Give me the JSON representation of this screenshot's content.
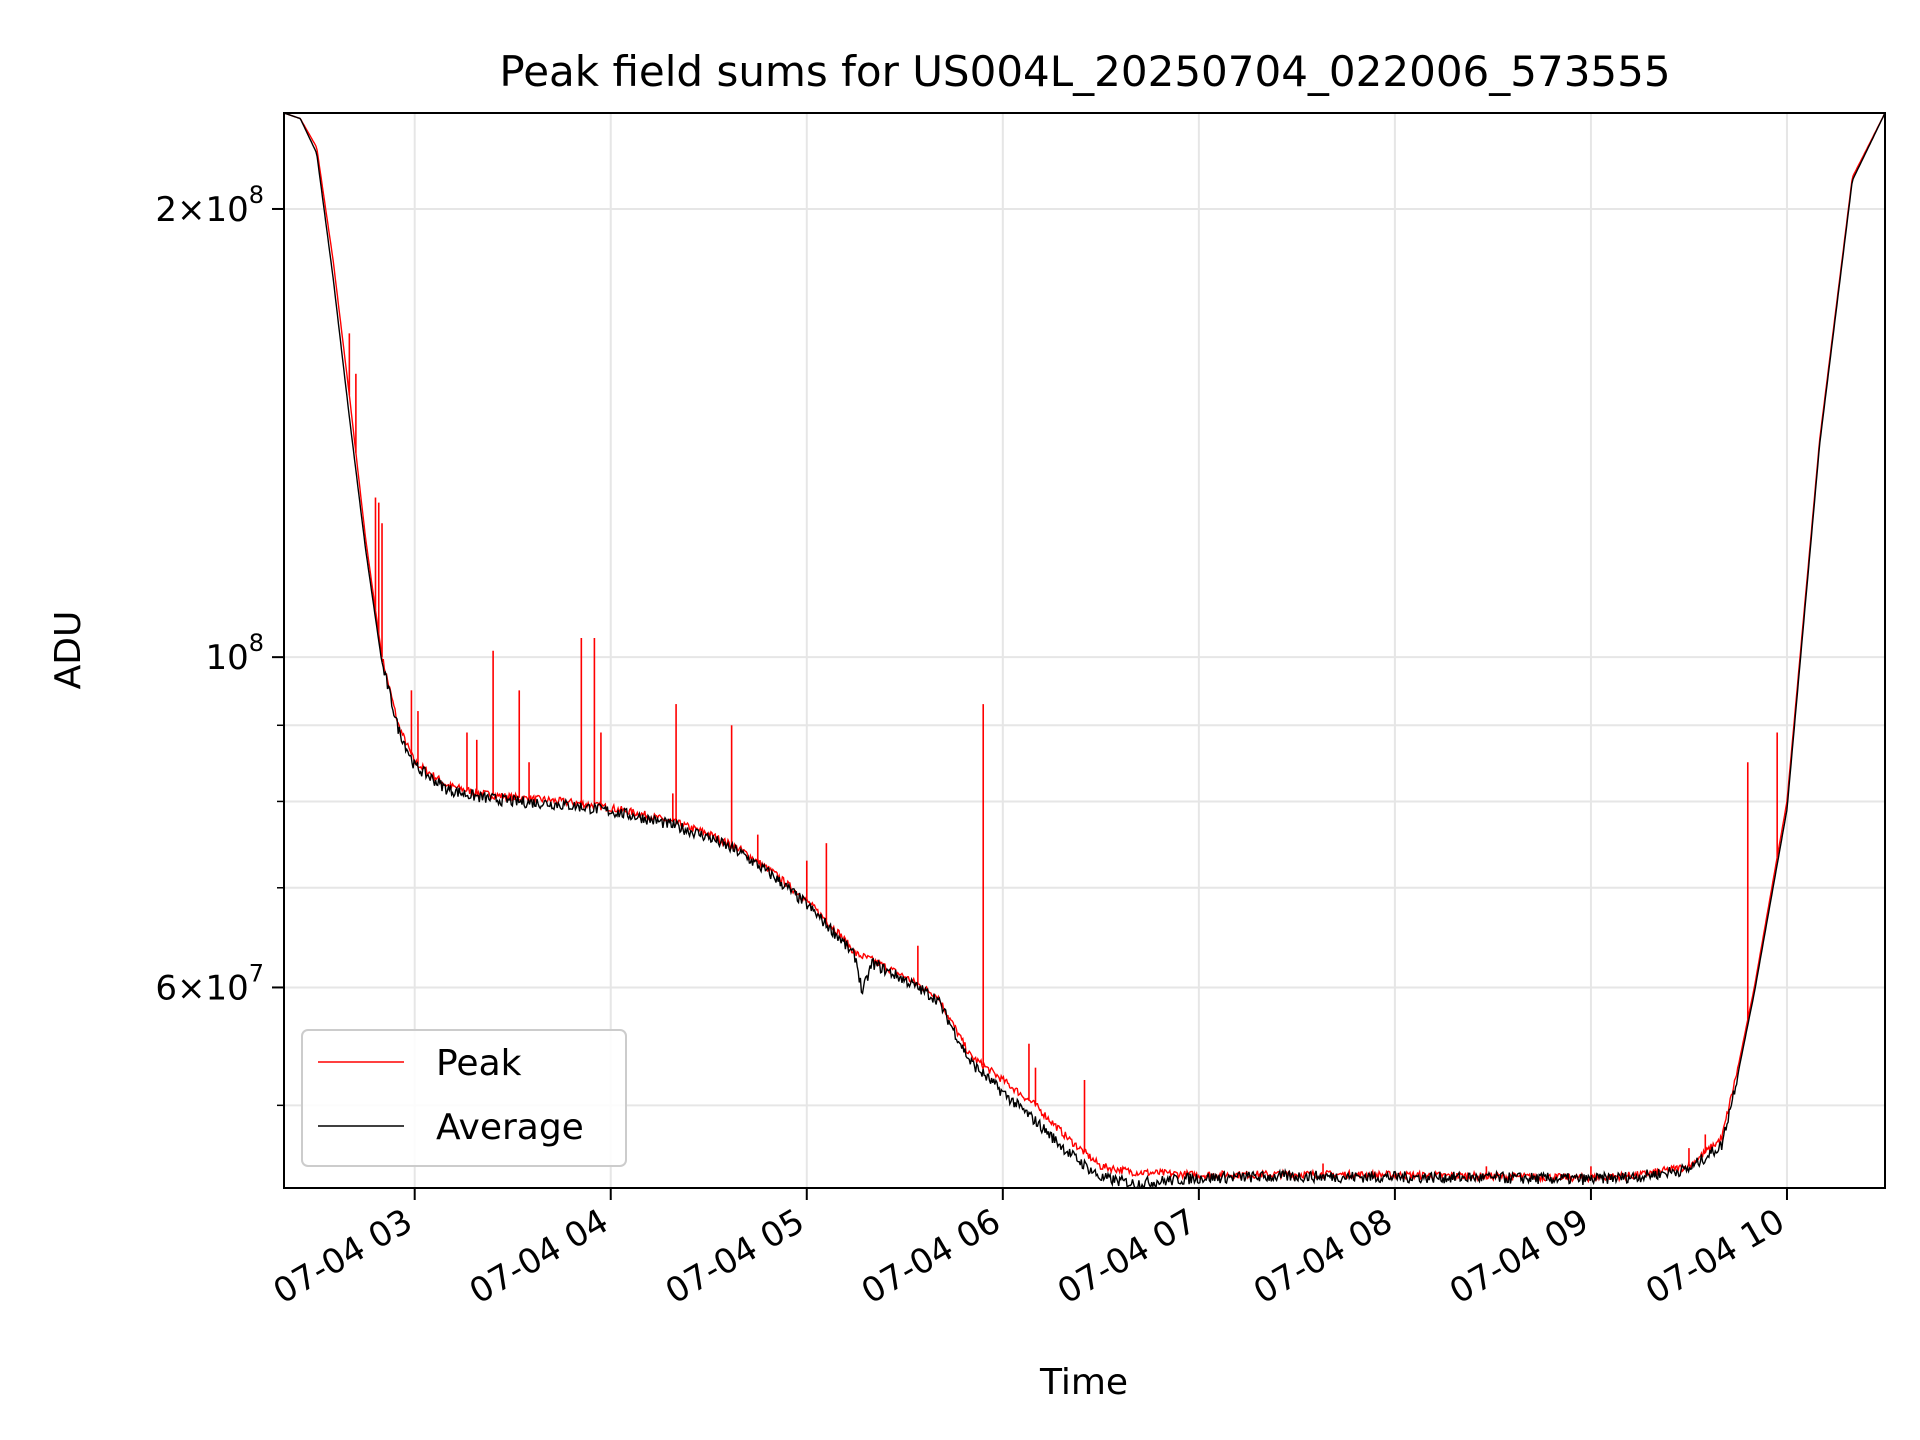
{
  "chart_data": {
    "type": "line",
    "title": "Peak field sums for US004L_20250704_022006_573555",
    "xlabel": "Time",
    "ylabel": "ADU",
    "yscale": "log",
    "grid": true,
    "legend_position": "lower-left",
    "x_ticks": [
      "07-04 03",
      "07-04 04",
      "07-04 05",
      "07-04 06",
      "07-04 07",
      "07-04 08",
      "07-04 09",
      "07-04 10"
    ],
    "y_ticks": [
      {
        "value": 200000000,
        "mantissa": "2",
        "times": "×",
        "base": "10",
        "exp": "8"
      },
      {
        "value": 100000000,
        "mantissa": "",
        "times": "",
        "base": "10",
        "exp": "8"
      },
      {
        "value": 60000000,
        "mantissa": "6",
        "times": "×",
        "base": "10",
        "exp": "7"
      }
    ],
    "ylim": [
      44000000,
      232000000
    ],
    "xlim": [
      "2025-07-04 02:20",
      "2025-07-04 10:30"
    ],
    "series": [
      {
        "name": "Peak",
        "color": "#ff0000",
        "x": [
          "02:20",
          "02:25",
          "02:30",
          "02:35",
          "02:40",
          "02:45",
          "02:50",
          "02:55",
          "03:00",
          "03:10",
          "03:20",
          "03:30",
          "03:40",
          "03:50",
          "04:00",
          "04:10",
          "04:20",
          "04:30",
          "04:40",
          "04:50",
          "05:00",
          "05:10",
          "05:15",
          "05:20",
          "05:30",
          "05:40",
          "05:50",
          "06:00",
          "06:10",
          "06:20",
          "06:30",
          "06:40",
          "06:50",
          "07:00",
          "07:30",
          "08:00",
          "08:30",
          "09:00",
          "09:15",
          "09:30",
          "09:40",
          "09:45",
          "09:50",
          "10:00",
          "10:10",
          "10:20",
          "10:30"
        ],
        "y": [
          232000000,
          230000000,
          220000000,
          185000000,
          150000000,
          120000000,
          100000000,
          90000000,
          85000000,
          82000000,
          81000000,
          80500000,
          80200000,
          79800000,
          79200000,
          78400000,
          77400000,
          76100000,
          74200000,
          71600000,
          68600000,
          65200000,
          63200000,
          62600000,
          61000000,
          59200000,
          54000000,
          52000000,
          50000000,
          47500000,
          45500000,
          45100000,
          45000000,
          44900000,
          44950000,
          44900000,
          44800000,
          44700000,
          44900000,
          45500000,
          47500000,
          53000000,
          60000000,
          80000000,
          140000000,
          210000000,
          232000000
        ],
        "spikes": [
          {
            "x": "02:40",
            "y": 165000000
          },
          {
            "x": "02:42",
            "y": 155000000
          },
          {
            "x": "02:48",
            "y": 128000000
          },
          {
            "x": "02:49",
            "y": 127000000
          },
          {
            "x": "02:50",
            "y": 123000000
          },
          {
            "x": "02:59",
            "y": 95000000
          },
          {
            "x": "03:01",
            "y": 92000000
          },
          {
            "x": "03:16",
            "y": 89000000
          },
          {
            "x": "03:19",
            "y": 88000000
          },
          {
            "x": "03:24",
            "y": 101000000
          },
          {
            "x": "03:32",
            "y": 95000000
          },
          {
            "x": "03:35",
            "y": 85000000
          },
          {
            "x": "03:51",
            "y": 103000000
          },
          {
            "x": "03:55",
            "y": 103000000
          },
          {
            "x": "03:57",
            "y": 89000000
          },
          {
            "x": "04:19",
            "y": 81000000
          },
          {
            "x": "04:20",
            "y": 93000000
          },
          {
            "x": "04:37",
            "y": 90000000
          },
          {
            "x": "04:45",
            "y": 76000000
          },
          {
            "x": "05:00",
            "y": 73000000
          },
          {
            "x": "05:06",
            "y": 75000000
          },
          {
            "x": "05:34",
            "y": 64000000
          },
          {
            "x": "05:54",
            "y": 93000000
          },
          {
            "x": "06:08",
            "y": 55000000
          },
          {
            "x": "06:10",
            "y": 53000000
          },
          {
            "x": "06:25",
            "y": 52000000
          },
          {
            "x": "07:38",
            "y": 45700000
          },
          {
            "x": "08:28",
            "y": 45500000
          },
          {
            "x": "09:00",
            "y": 45500000
          },
          {
            "x": "09:30",
            "y": 46800000
          },
          {
            "x": "09:35",
            "y": 47800000
          },
          {
            "x": "09:48",
            "y": 85000000
          },
          {
            "x": "09:57",
            "y": 89000000
          }
        ]
      },
      {
        "name": "Average",
        "color": "#000000",
        "x": [
          "02:20",
          "02:25",
          "02:30",
          "02:35",
          "02:40",
          "02:45",
          "02:50",
          "02:55",
          "03:00",
          "03:10",
          "03:20",
          "03:30",
          "03:40",
          "03:50",
          "04:00",
          "04:10",
          "04:20",
          "04:30",
          "04:40",
          "04:50",
          "05:00",
          "05:10",
          "05:15",
          "05:17",
          "05:20",
          "05:30",
          "05:40",
          "05:50",
          "06:00",
          "06:10",
          "06:20",
          "06:30",
          "06:40",
          "06:50",
          "07:00",
          "07:30",
          "08:00",
          "08:30",
          "09:00",
          "09:15",
          "09:30",
          "09:40",
          "09:45",
          "09:50",
          "10:00",
          "10:10",
          "10:20",
          "10:30"
        ],
        "y": [
          232000000,
          230000000,
          218000000,
          180000000,
          145000000,
          118000000,
          99000000,
          89500000,
          84500000,
          81500000,
          80500000,
          80000000,
          79800000,
          79400000,
          78800000,
          78000000,
          77000000,
          75700000,
          73800000,
          71200000,
          68200000,
          64800000,
          62800000,
          59500000,
          62300000,
          60700000,
          58900000,
          53500000,
          51000000,
          48800000,
          46500000,
          44700000,
          44300000,
          44500000,
          44700000,
          44800000,
          44750000,
          44700000,
          44600000,
          44800000,
          45300000,
          47000000,
          52500000,
          59500000,
          79000000,
          139000000,
          209000000,
          232000000
        ]
      }
    ]
  }
}
